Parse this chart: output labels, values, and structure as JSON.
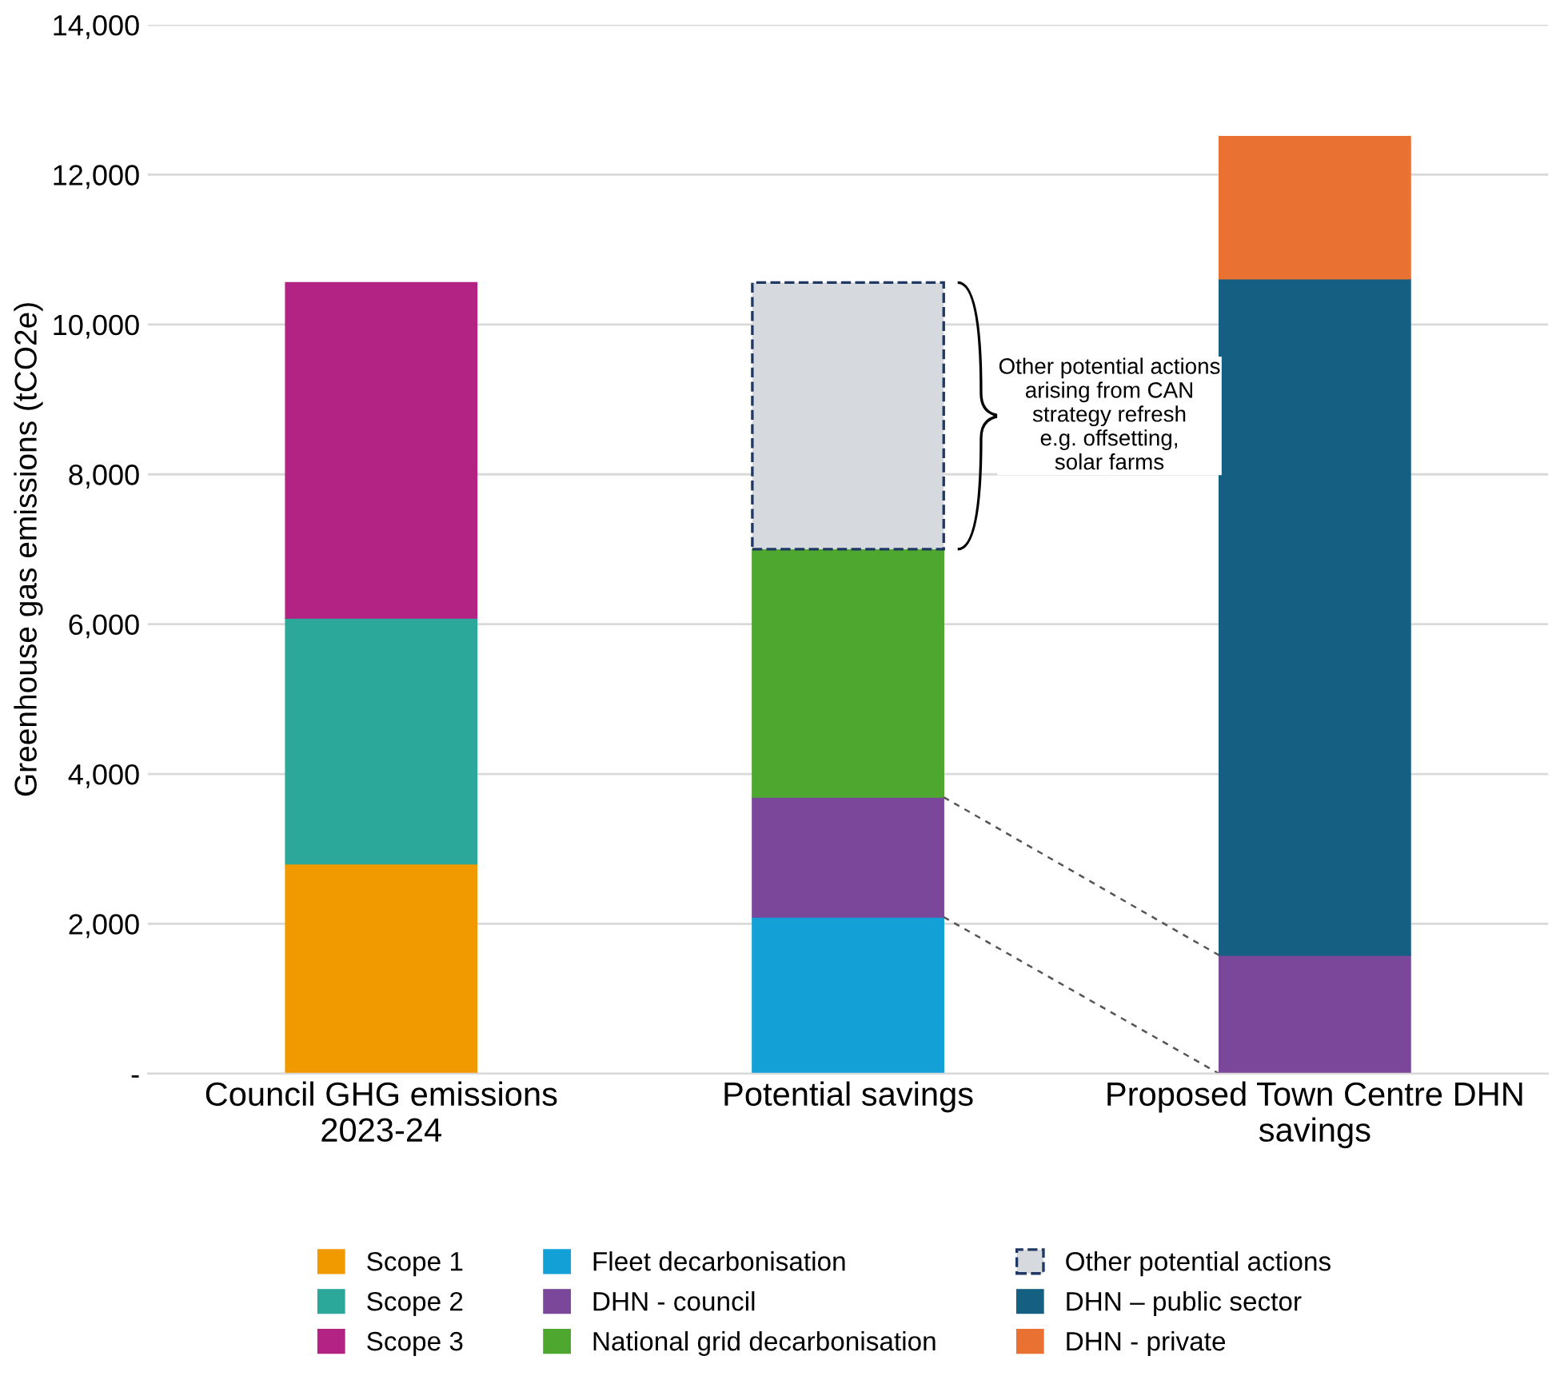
{
  "chart_data": {
    "type": "bar",
    "stacked": true,
    "ylabel": "Greenhouse gas emissions (tCO2e)",
    "categories": [
      "Council GHG emissions\n2023-24",
      "Potential savings",
      "Proposed Town Centre DHN\nsavings"
    ],
    "series": [
      {
        "name": "Scope 1",
        "color": "#f09a00",
        "values": [
          2800,
          null,
          null
        ]
      },
      {
        "name": "Scope 2",
        "color": "#2ca89a",
        "values": [
          3280,
          null,
          null
        ]
      },
      {
        "name": "Scope 3",
        "color": "#b22383",
        "values": [
          4480,
          null,
          null
        ]
      },
      {
        "name": "Fleet decarbonisation",
        "color": "#12a0d7",
        "values": [
          null,
          2090,
          null
        ]
      },
      {
        "name": "DHN - council",
        "color": "#7b479a",
        "values": [
          null,
          1600,
          1580
        ]
      },
      {
        "name": "National grid decarbonisation",
        "color": "#4ea72e",
        "values": [
          null,
          3310,
          null
        ]
      },
      {
        "name": "Other potential actions",
        "color": "#d6dadf",
        "line_style": "dashed",
        "values": [
          null,
          3560,
          null
        ]
      },
      {
        "name": "DHN – public sector",
        "color": "#156082",
        "values": [
          null,
          null,
          9030
        ]
      },
      {
        "name": "DHN - private",
        "color": "#e97132",
        "values": [
          null,
          null,
          1900
        ]
      }
    ],
    "ylim": [
      0,
      14000
    ],
    "yticks": [
      {
        "value": 0,
        "label": "-"
      },
      {
        "value": 2000,
        "label": "2,000"
      },
      {
        "value": 4000,
        "label": "4,000"
      },
      {
        "value": 6000,
        "label": "6,000"
      },
      {
        "value": 8000,
        "label": "8,000"
      },
      {
        "value": 10000,
        "label": "10,000"
      },
      {
        "value": 12000,
        "label": "12,000"
      },
      {
        "value": 14000,
        "label": "14,000"
      }
    ],
    "grid": "y",
    "legend": "bottom",
    "annotations": [
      "Other potential actions\narising from CAN\nstrategy refresh\ne.g. offsetting,\nsolar farms"
    ]
  }
}
